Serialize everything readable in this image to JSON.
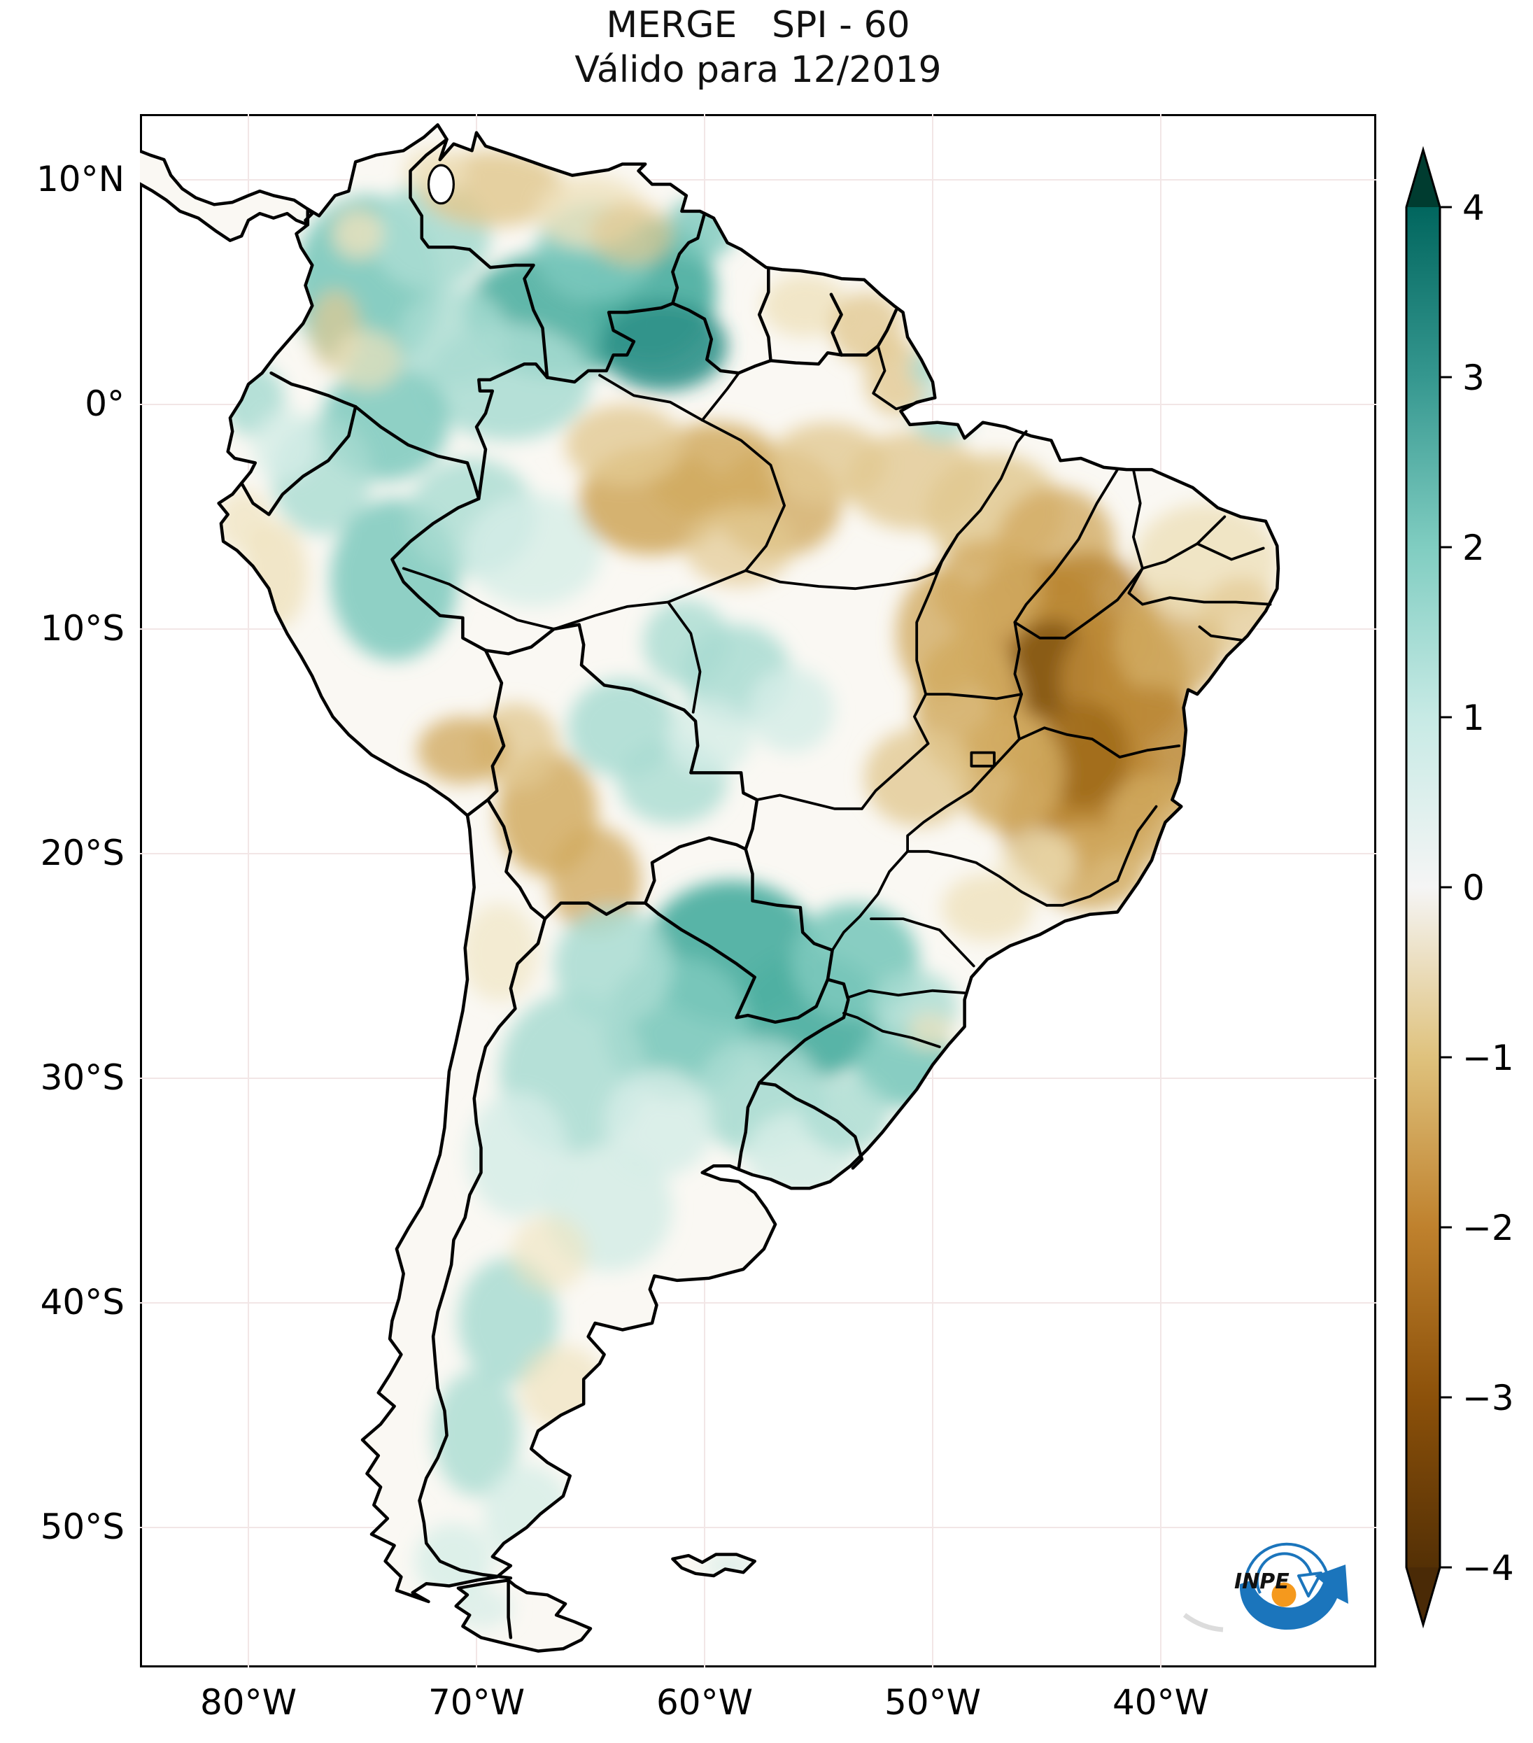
{
  "title": {
    "line1": "MERGE   SPI - 60",
    "line2": "Válido para 12/2019"
  },
  "map": {
    "lat_ticks": [
      {
        "label": "10°N",
        "lat": 10
      },
      {
        "label": "0°",
        "lat": 0
      },
      {
        "label": "10°S",
        "lat": -10
      },
      {
        "label": "20°S",
        "lat": -20
      },
      {
        "label": "30°S",
        "lat": -30
      },
      {
        "label": "40°S",
        "lat": -40
      },
      {
        "label": "50°S",
        "lat": -50
      }
    ],
    "lon_ticks": [
      {
        "label": "80°W",
        "lon": -80
      },
      {
        "label": "70°W",
        "lon": -70
      },
      {
        "label": "60°W",
        "lon": -60
      },
      {
        "label": "50°W",
        "lon": -50
      },
      {
        "label": "40°W",
        "lon": -40
      }
    ]
  },
  "colorbar": {
    "tick_labels": [
      "4",
      "3",
      "2",
      "1",
      "0",
      "−1",
      "−2",
      "−3",
      "−4"
    ],
    "tick_values": [
      4,
      3,
      2,
      1,
      0,
      -1,
      -2,
      -3,
      -4
    ],
    "gradient": [
      {
        "v": 4,
        "c": "#01665e"
      },
      {
        "v": 3,
        "c": "#35978f"
      },
      {
        "v": 2,
        "c": "#80cdc1"
      },
      {
        "v": 1,
        "c": "#c7eae5"
      },
      {
        "v": 0,
        "c": "#f5f5f5"
      },
      {
        "v": -1,
        "c": "#dfc27d"
      },
      {
        "v": -2,
        "c": "#bf812d"
      },
      {
        "v": -3,
        "c": "#8c510a"
      },
      {
        "v": -4,
        "c": "#543005"
      }
    ],
    "over_color": "#003c30",
    "under_color": "#4a2a06"
  },
  "logo": {
    "text": "INPE",
    "blue": "#1b75bc",
    "orange": "#f5991d"
  },
  "chart_data": {
    "type": "heatmap",
    "title": "MERGE   SPI - 60",
    "subtitle": "Válido para 12/2019",
    "variable": "SPI-60 (Standardized Precipitation Index over 60 months), MERGE precipitation, valid 12/2019",
    "region": "South America",
    "colorbar_range": [
      -4,
      4
    ],
    "colorbar_ticks": [
      4,
      3,
      2,
      1,
      0,
      -1,
      -2,
      -3,
      -4
    ],
    "x_axis": {
      "label_type": "longitude",
      "ticks": [
        "80°W",
        "70°W",
        "60°W",
        "50°W",
        "40°W"
      ]
    },
    "y_axis": {
      "label_type": "latitude",
      "ticks": [
        "10°N",
        "0°",
        "10°S",
        "20°S",
        "30°S",
        "40°S",
        "50°S"
      ]
    },
    "legend_position": "right",
    "grid": "faint 10-degree graticule",
    "regions": [
      {
        "region": "Southern Venezuela / Guyana / Roraima",
        "spi_approx": 2.0
      },
      {
        "region": "Colombia Andes and western Amazon",
        "spi_approx": 1.5
      },
      {
        "region": "Northern Venezuela llanos",
        "spi_approx": -1.0
      },
      {
        "region": "Central Amazon (≈60°W, 3°S)",
        "spi_approx": -1.5
      },
      {
        "region": "Eastern Brazil (Tocantins / Bahia / Minas Gerais)",
        "spi_approx": -2.5
      },
      {
        "region": "Northeast Brazil coast",
        "spi_approx": -1.0
      },
      {
        "region": "Mato Grosso (central patch)",
        "spi_approx": 1.0
      },
      {
        "region": "Bolivian Andes",
        "spi_approx": -1.5
      },
      {
        "region": "Paraguay / Southern Brazil / NE Argentina",
        "spi_approx": 2.0
      },
      {
        "region": "Central Argentina and Patagonian Andes",
        "spi_approx": 1.0
      },
      {
        "region": "Chilean coast / Atacama",
        "spi_approx": 0.0
      }
    ]
  }
}
